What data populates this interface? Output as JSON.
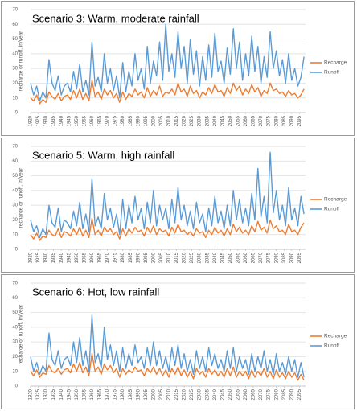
{
  "chart_data": [
    {
      "type": "line",
      "title": "Scenario 3: Warm, moderate rainfall",
      "y_label": "recharge or runoff, in/year",
      "x": [
        1920,
        1922,
        1924,
        1926,
        1928,
        1930,
        1932,
        1934,
        1936,
        1938,
        1940,
        1942,
        1944,
        1946,
        1948,
        1950,
        1952,
        1954,
        1956,
        1958,
        1960,
        1962,
        1964,
        1966,
        1968,
        1970,
        1972,
        1974,
        1976,
        1978,
        1980,
        1982,
        1984,
        1986,
        1988,
        1990,
        1992,
        1994,
        1996,
        1998,
        2000,
        2002,
        2004,
        2006,
        2008,
        2010,
        2012,
        2014,
        2016,
        2018,
        2020,
        2022,
        2024,
        2026,
        2028,
        2030,
        2032,
        2034,
        2036,
        2038,
        2040,
        2042,
        2044,
        2046,
        2048,
        2050,
        2052,
        2054,
        2056,
        2058,
        2060,
        2062,
        2064,
        2066,
        2068,
        2070,
        2072,
        2074,
        2076,
        2078,
        2080,
        2082,
        2084,
        2086,
        2088,
        2090,
        2092,
        2094,
        2096,
        2098
      ],
      "series": [
        {
          "name": "Recharge",
          "color": "#ed7d31",
          "values": [
            10,
            8,
            12,
            6,
            9,
            7,
            14,
            11,
            9,
            13,
            8,
            11,
            12,
            9,
            15,
            10,
            16,
            9,
            13,
            8,
            22,
            11,
            14,
            9,
            16,
            12,
            15,
            10,
            13,
            7,
            14,
            9,
            13,
            11,
            16,
            12,
            14,
            10,
            17,
            11,
            15,
            12,
            18,
            11,
            14,
            13,
            16,
            12,
            20,
            14,
            16,
            11,
            18,
            13,
            15,
            10,
            14,
            12,
            17,
            13,
            19,
            14,
            15,
            11,
            17,
            13,
            20,
            15,
            18,
            12,
            16,
            13,
            19,
            14,
            17,
            11,
            15,
            13,
            20,
            15,
            16,
            13,
            14,
            11,
            15,
            12,
            13,
            10,
            12,
            16
          ]
        },
        {
          "name": "Runoff",
          "color": "#5b9bd5",
          "values": [
            20,
            12,
            18,
            8,
            14,
            10,
            36,
            20,
            15,
            25,
            12,
            18,
            20,
            14,
            28,
            16,
            33,
            14,
            22,
            12,
            48,
            18,
            24,
            14,
            40,
            20,
            30,
            15,
            25,
            10,
            34,
            14,
            28,
            18,
            40,
            22,
            30,
            16,
            45,
            20,
            35,
            25,
            48,
            22,
            60,
            28,
            40,
            24,
            55,
            30,
            45,
            20,
            50,
            26,
            42,
            18,
            38,
            22,
            46,
            24,
            54,
            28,
            35,
            20,
            44,
            26,
            57,
            30,
            48,
            22,
            40,
            25,
            52,
            28,
            45,
            20,
            38,
            24,
            55,
            30,
            42,
            25,
            36,
            20,
            40,
            22,
            30,
            18,
            24,
            38
          ]
        }
      ],
      "xlim": [
        1920,
        2099
      ],
      "xticks": [
        1920,
        1925,
        1930,
        1935,
        1940,
        1945,
        1950,
        1955,
        1960,
        1965,
        1970,
        1975,
        1980,
        1985,
        1990,
        1995,
        2000,
        2005,
        2010,
        2015,
        2020,
        2025,
        2030,
        2035,
        2040,
        2045,
        2050,
        2055,
        2060,
        2065,
        2070,
        2075,
        2080,
        2085,
        2090,
        2095
      ],
      "ylim": [
        0,
        70
      ],
      "yticks": [
        0,
        10,
        20,
        30,
        40,
        50,
        60,
        70
      ],
      "grid": true,
      "legend": "right"
    },
    {
      "type": "line",
      "title": "Scenario 5: Warm, high rainfall",
      "y_label": "recharge or runoff, in/year",
      "x": [
        1920,
        1922,
        1924,
        1926,
        1928,
        1930,
        1932,
        1934,
        1936,
        1938,
        1940,
        1942,
        1944,
        1946,
        1948,
        1950,
        1952,
        1954,
        1956,
        1958,
        1960,
        1962,
        1964,
        1966,
        1968,
        1970,
        1972,
        1974,
        1976,
        1978,
        1980,
        1982,
        1984,
        1986,
        1988,
        1990,
        1992,
        1994,
        1996,
        1998,
        2000,
        2002,
        2004,
        2006,
        2008,
        2010,
        2012,
        2014,
        2016,
        2018,
        2020,
        2022,
        2024,
        2026,
        2028,
        2030,
        2032,
        2034,
        2036,
        2038,
        2040,
        2042,
        2044,
        2046,
        2048,
        2050,
        2052,
        2054,
        2056,
        2058,
        2060,
        2062,
        2064,
        2066,
        2068,
        2070,
        2072,
        2074,
        2076,
        2078,
        2080,
        2082,
        2084,
        2086,
        2088,
        2090,
        2092,
        2094,
        2096,
        2098
      ],
      "series": [
        {
          "name": "Recharge",
          "color": "#ed7d31",
          "values": [
            10,
            7,
            11,
            6,
            9,
            8,
            13,
            10,
            9,
            14,
            8,
            12,
            11,
            9,
            14,
            10,
            15,
            9,
            13,
            8,
            21,
            10,
            13,
            9,
            15,
            12,
            14,
            10,
            12,
            7,
            14,
            9,
            14,
            11,
            15,
            12,
            13,
            9,
            15,
            11,
            16,
            10,
            14,
            12,
            13,
            9,
            15,
            11,
            17,
            12,
            13,
            10,
            12,
            9,
            14,
            11,
            12,
            8,
            13,
            10,
            15,
            11,
            13,
            9,
            14,
            10,
            17,
            12,
            15,
            11,
            13,
            10,
            16,
            12,
            19,
            13,
            15,
            11,
            20,
            14,
            16,
            12,
            13,
            10,
            17,
            12,
            13,
            10,
            15,
            18
          ]
        },
        {
          "name": "Runoff",
          "color": "#5b9bd5",
          "values": [
            20,
            12,
            16,
            8,
            14,
            10,
            30,
            18,
            15,
            28,
            12,
            20,
            18,
            14,
            26,
            16,
            32,
            14,
            24,
            12,
            48,
            16,
            22,
            14,
            38,
            20,
            28,
            15,
            24,
            10,
            34,
            14,
            30,
            18,
            36,
            20,
            28,
            14,
            32,
            18,
            40,
            16,
            30,
            20,
            28,
            14,
            34,
            18,
            42,
            20,
            30,
            16,
            26,
            14,
            32,
            18,
            24,
            12,
            28,
            16,
            36,
            18,
            26,
            14,
            30,
            16,
            40,
            20,
            34,
            18,
            28,
            16,
            38,
            20,
            55,
            22,
            36,
            18,
            66,
            25,
            40,
            20,
            30,
            16,
            42,
            20,
            28,
            16,
            36,
            24
          ]
        }
      ],
      "xlim": [
        1920,
        2099
      ],
      "xticks": [
        1920,
        1925,
        1930,
        1935,
        1940,
        1945,
        1950,
        1955,
        1960,
        1965,
        1970,
        1975,
        1980,
        1985,
        1990,
        1995,
        2000,
        2005,
        2010,
        2015,
        2020,
        2025,
        2030,
        2035,
        2040,
        2045,
        2050,
        2055,
        2060,
        2065,
        2070,
        2075,
        2080,
        2085,
        2090,
        2095
      ],
      "ylim": [
        0,
        70
      ],
      "yticks": [
        0,
        10,
        20,
        30,
        40,
        50,
        60,
        70
      ],
      "grid": true,
      "legend": "right"
    },
    {
      "type": "line",
      "title": "Scenario 6: Hot, low rainfall",
      "y_label": "recharge or runoff, in/year",
      "x": [
        1920,
        1922,
        1924,
        1926,
        1928,
        1930,
        1932,
        1934,
        1936,
        1938,
        1940,
        1942,
        1944,
        1946,
        1948,
        1950,
        1952,
        1954,
        1956,
        1958,
        1960,
        1962,
        1964,
        1966,
        1968,
        1970,
        1972,
        1974,
        1976,
        1978,
        1980,
        1982,
        1984,
        1986,
        1988,
        1990,
        1992,
        1994,
        1996,
        1998,
        2000,
        2002,
        2004,
        2006,
        2008,
        2010,
        2012,
        2014,
        2016,
        2018,
        2020,
        2022,
        2024,
        2026,
        2028,
        2030,
        2032,
        2034,
        2036,
        2038,
        2040,
        2042,
        2044,
        2046,
        2048,
        2050,
        2052,
        2054,
        2056,
        2058,
        2060,
        2062,
        2064,
        2066,
        2068,
        2070,
        2072,
        2074,
        2076,
        2078,
        2080,
        2082,
        2084,
        2086,
        2088,
        2090,
        2092,
        2094,
        2096,
        2098
      ],
      "series": [
        {
          "name": "Recharge",
          "color": "#ed7d31",
          "values": [
            10,
            7,
            11,
            6,
            9,
            8,
            14,
            10,
            9,
            12,
            8,
            11,
            12,
            9,
            15,
            10,
            16,
            9,
            13,
            7,
            22,
            10,
            13,
            8,
            15,
            11,
            14,
            9,
            12,
            6,
            12,
            8,
            11,
            9,
            13,
            10,
            11,
            7,
            12,
            9,
            13,
            8,
            12,
            7,
            11,
            6,
            12,
            8,
            13,
            7,
            11,
            6,
            10,
            5,
            12,
            8,
            10,
            6,
            12,
            8,
            11,
            7,
            10,
            6,
            12,
            7,
            13,
            6,
            10,
            7,
            10,
            5,
            11,
            6,
            10,
            7,
            12,
            6,
            10,
            5,
            11,
            6,
            9,
            5,
            10,
            6,
            9,
            4,
            8,
            4
          ]
        },
        {
          "name": "Runoff",
          "color": "#5b9bd5",
          "values": [
            20,
            10,
            16,
            8,
            14,
            10,
            36,
            18,
            14,
            24,
            12,
            18,
            20,
            14,
            30,
            16,
            33,
            14,
            24,
            10,
            48,
            16,
            22,
            12,
            40,
            18,
            28,
            14,
            24,
            10,
            26,
            12,
            22,
            14,
            28,
            16,
            20,
            12,
            26,
            14,
            30,
            14,
            24,
            12,
            20,
            10,
            26,
            14,
            28,
            12,
            22,
            10,
            18,
            8,
            24,
            12,
            20,
            10,
            26,
            14,
            22,
            12,
            18,
            10,
            24,
            12,
            26,
            10,
            20,
            12,
            18,
            8,
            22,
            10,
            20,
            12,
            24,
            10,
            18,
            8,
            22,
            10,
            16,
            8,
            20,
            10,
            18,
            6,
            16,
            6
          ]
        }
      ],
      "xlim": [
        1920,
        2099
      ],
      "xticks": [
        1920,
        1925,
        1930,
        1935,
        1940,
        1945,
        1950,
        1955,
        1960,
        1965,
        1970,
        1975,
        1980,
        1985,
        1990,
        1995,
        2000,
        2005,
        2010,
        2015,
        2020,
        2025,
        2030,
        2035,
        2040,
        2045,
        2050,
        2055,
        2060,
        2065,
        2070,
        2075,
        2080,
        2085,
        2090,
        2095
      ],
      "ylim": [
        0,
        70
      ],
      "yticks": [
        0,
        10,
        20,
        30,
        40,
        50,
        60,
        70
      ],
      "grid": true,
      "legend": "right"
    }
  ]
}
